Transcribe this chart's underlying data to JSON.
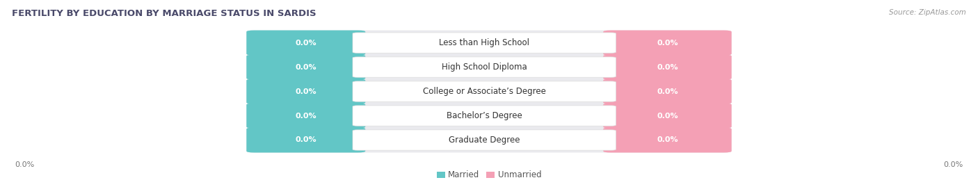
{
  "title": "FERTILITY BY EDUCATION BY MARRIAGE STATUS IN SARDIS",
  "source": "Source: ZipAtlas.com",
  "categories": [
    "Less than High School",
    "High School Diploma",
    "College or Associate’s Degree",
    "Bachelor’s Degree",
    "Graduate Degree"
  ],
  "married_values": [
    0.0,
    0.0,
    0.0,
    0.0,
    0.0
  ],
  "unmarried_values": [
    0.0,
    0.0,
    0.0,
    0.0,
    0.0
  ],
  "married_color": "#62C6C6",
  "unmarried_color": "#F4A0B5",
  "row_bg_color": "#EAEAEE",
  "title_color": "#4A4A6A",
  "value_label_married": "0.0%",
  "value_label_unmarried": "0.0%",
  "axis_label_left": "0.0%",
  "axis_label_right": "0.0%",
  "legend_married": "Married",
  "legend_unmarried": "Unmarried",
  "background_color": "#FFFFFF",
  "title_fontsize": 9.5,
  "category_fontsize": 8.5,
  "value_fontsize": 8,
  "axis_fontsize": 8,
  "source_fontsize": 7.5
}
